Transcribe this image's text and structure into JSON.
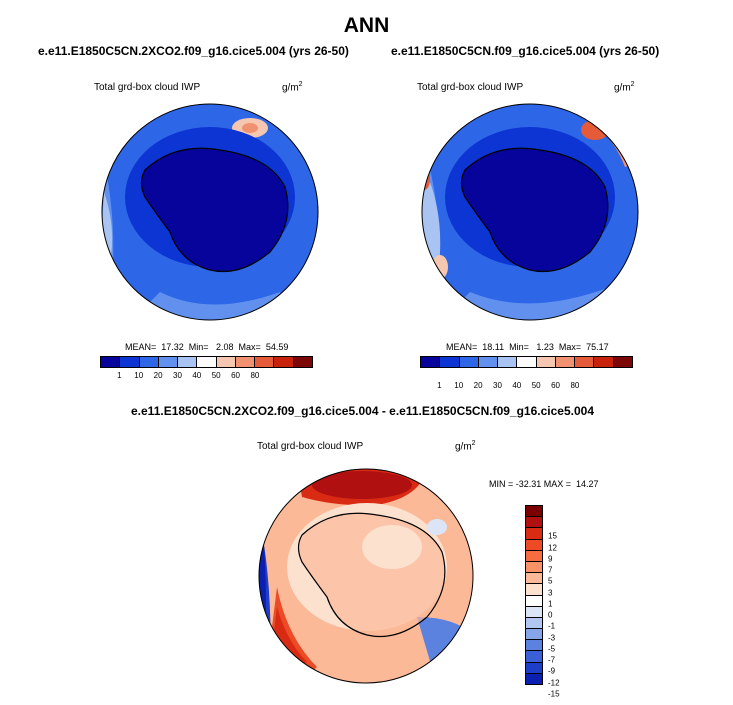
{
  "chart_data": [
    {
      "type": "heatmap",
      "projection": "south-polar-stereographic",
      "main_title": "ANN",
      "title": "e.e11.E1850C5CN.2XCO2.f09_g16.cice5.004 (yrs 26-50)",
      "variable": "Total grd-box cloud IWP",
      "units": "g/m",
      "units_exp": "2",
      "stats": "MEAN=  17.32  Min=   2.08  Max=  54.59",
      "colorbar_levels": [
        "1",
        "10",
        "20",
        "30",
        "40",
        "50",
        "60",
        "80"
      ],
      "colorbar_colors": [
        "#06049a",
        "#0c35d4",
        "#2d66e6",
        "#6290ef",
        "#a9c3f3",
        "#fbfbfb",
        "#f6c7b0",
        "#f09271",
        "#e55a39",
        "#c8220d",
        "#7b0806"
      ]
    },
    {
      "type": "heatmap",
      "projection": "south-polar-stereographic",
      "title": "e.e11.E1850C5CN.f09_g16.cice5.004 (yrs 26-50)",
      "variable": "Total grd-box cloud IWP",
      "units": "g/m",
      "units_exp": "2",
      "stats": "MEAN=  18.11  Min=   1.23  Max=  75.17",
      "colorbar_levels": [
        "1",
        "10",
        "20",
        "30",
        "40",
        "50",
        "60",
        "80"
      ],
      "colorbar_colors": [
        "#06049a",
        "#0c35d4",
        "#2d66e6",
        "#6290ef",
        "#a9c3f3",
        "#fbfbfb",
        "#f6c7b0",
        "#f09271",
        "#e55a39",
        "#c8220d",
        "#7b0806"
      ]
    },
    {
      "type": "heatmap",
      "projection": "south-polar-stereographic",
      "title": "e.e11.E1850C5CN.2XCO2.f09_g16.cice5.004 - e.e11.E1850C5CN.f09_g16.cice5.004",
      "variable": "Total grd-box cloud IWP",
      "units": "g/m",
      "units_exp": "2",
      "stats": "MIN = -32.31 MAX =  14.27",
      "colorbar_levels": [
        "15",
        "12",
        "9",
        "7",
        "5",
        "3",
        "1",
        "0",
        "-1",
        "-3",
        "-5",
        "-7",
        "-9",
        "-12",
        "-15"
      ],
      "colorbar_colors": [
        "#7a0000",
        "#b01010",
        "#d92a14",
        "#ed4a26",
        "#f56d41",
        "#f99367",
        "#fbb998",
        "#fde1cf",
        "#ffffff",
        "#dbe5f7",
        "#b1c6f0",
        "#86a5e8",
        "#5c82e0",
        "#3a5fd6",
        "#1d3ec9",
        "#0b1fb0"
      ]
    }
  ]
}
